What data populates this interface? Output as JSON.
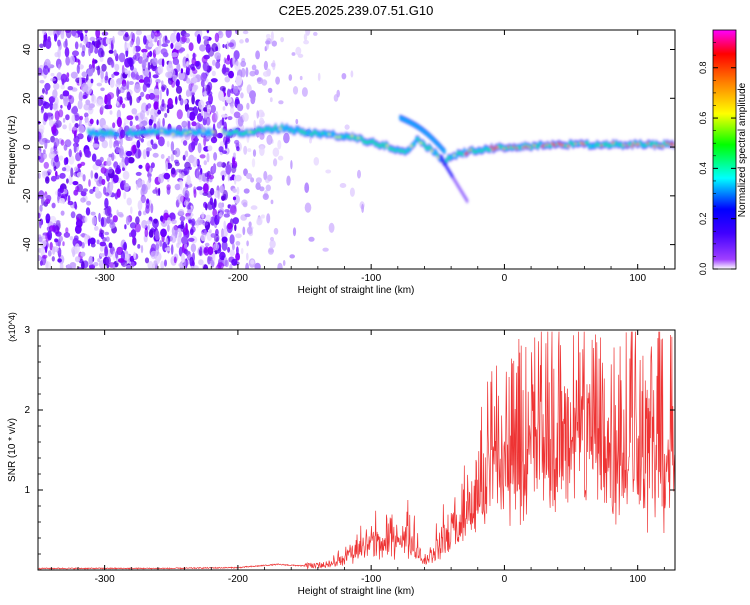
{
  "title": "C2E5.2025.239.07.51.G10",
  "chart_data": [
    {
      "type": "heatmap",
      "xlabel": "Height of straight line (km)",
      "ylabel": "Frequency (Hz)",
      "xlim": [
        -350,
        128
      ],
      "ylim": [
        -50,
        48
      ],
      "xticks": [
        -300,
        -200,
        -100,
        0,
        100
      ],
      "yticks": [
        -40,
        -20,
        0,
        20,
        40
      ],
      "colorbar": {
        "label": "Normalized spectral amplitude",
        "range": [
          0,
          0.95
        ],
        "ticks": [
          0.0,
          0.2,
          0.4,
          0.6,
          0.8
        ],
        "tick_labels": [
          "0.0",
          "0.2",
          "0.4",
          "0.6",
          "0.8"
        ],
        "colors": [
          "#ffffff",
          "#8000ff",
          "#0000ff",
          "#00ffff",
          "#00ff00",
          "#ffff00",
          "#ff8000",
          "#ff0000",
          "#ff00ff"
        ]
      },
      "ridge": [
        {
          "x": -310,
          "y": 6
        },
        {
          "x": -290,
          "y": 5.5
        },
        {
          "x": -270,
          "y": 6.5
        },
        {
          "x": -250,
          "y": 6
        },
        {
          "x": -230,
          "y": 6
        },
        {
          "x": -210,
          "y": 6
        },
        {
          "x": -190,
          "y": 6
        },
        {
          "x": -180,
          "y": 7
        },
        {
          "x": -165,
          "y": 8
        },
        {
          "x": -150,
          "y": 6
        },
        {
          "x": -130,
          "y": 5
        },
        {
          "x": -115,
          "y": 4
        },
        {
          "x": -100,
          "y": 2
        },
        {
          "x": -85,
          "y": 0
        },
        {
          "x": -75,
          "y": -2
        },
        {
          "x": -65,
          "y": 3
        },
        {
          "x": -55,
          "y": -1
        },
        {
          "x": -45,
          "y": -6
        },
        {
          "x": -40,
          "y": -4
        },
        {
          "x": -35,
          "y": -3
        },
        {
          "x": -20,
          "y": -1
        },
        {
          "x": 0,
          "y": 0
        },
        {
          "x": 20,
          "y": 0.5
        },
        {
          "x": 40,
          "y": 1
        },
        {
          "x": 60,
          "y": 1
        },
        {
          "x": 80,
          "y": 1
        },
        {
          "x": 100,
          "y": 1
        },
        {
          "x": 128,
          "y": 1
        }
      ]
    },
    {
      "type": "line",
      "xlabel": "Height of straight line (km)",
      "ylabel": "SNR (10 * v/v)",
      "yscale_label": "(x10^4)",
      "xlim": [
        -350,
        128
      ],
      "ylim": [
        0,
        3.0
      ],
      "xticks": [
        -300,
        -200,
        -100,
        0,
        100
      ],
      "yticks": [
        1,
        2,
        3
      ],
      "color": "#ee3333",
      "envelope": [
        {
          "x": -350,
          "y": 0.02
        },
        {
          "x": -300,
          "y": 0.02
        },
        {
          "x": -250,
          "y": 0.02
        },
        {
          "x": -200,
          "y": 0.03
        },
        {
          "x": -170,
          "y": 0.07
        },
        {
          "x": -150,
          "y": 0.05
        },
        {
          "x": -130,
          "y": 0.08
        },
        {
          "x": -110,
          "y": 0.25
        },
        {
          "x": -100,
          "y": 0.4
        },
        {
          "x": -90,
          "y": 0.3
        },
        {
          "x": -80,
          "y": 0.5
        },
        {
          "x": -70,
          "y": 0.4
        },
        {
          "x": -60,
          "y": 0.12
        },
        {
          "x": -50,
          "y": 0.3
        },
        {
          "x": -40,
          "y": 0.5
        },
        {
          "x": -30,
          "y": 0.7
        },
        {
          "x": -20,
          "y": 1.0
        },
        {
          "x": -10,
          "y": 1.3
        },
        {
          "x": 0,
          "y": 1.5
        },
        {
          "x": 20,
          "y": 1.7
        },
        {
          "x": 40,
          "y": 1.8
        },
        {
          "x": 60,
          "y": 1.8
        },
        {
          "x": 80,
          "y": 1.75
        },
        {
          "x": 100,
          "y": 1.7
        },
        {
          "x": 128,
          "y": 1.65
        }
      ]
    }
  ]
}
